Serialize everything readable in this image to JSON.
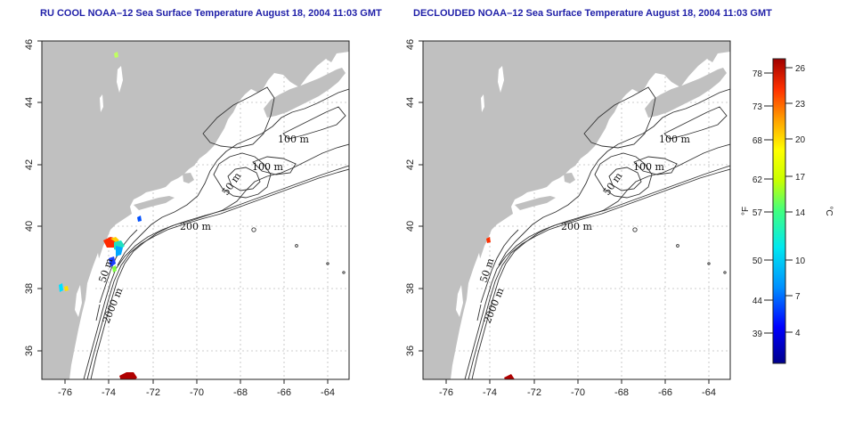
{
  "panels": [
    {
      "title": "RU COOL NOAA–12 Sea Surface Temperature August 18, 2004 11:03 GMT",
      "x_ticks": [
        "-76",
        "-74",
        "-72",
        "-70",
        "-68",
        "-66",
        "-64"
      ],
      "y_ticks": [
        "36",
        "38",
        "40",
        "42",
        "44",
        "46"
      ],
      "contour_labels": [
        "100 m",
        "100 m",
        "50 m",
        "200 m",
        "50 m",
        "2000 m"
      ]
    },
    {
      "title": "DECLOUDED NOAA–12 Sea Surface Temperature August 18, 2004 11:03 GMT",
      "x_ticks": [
        "-76",
        "-74",
        "-72",
        "-70",
        "-68",
        "-66",
        "-64"
      ],
      "y_ticks": [
        "36",
        "38",
        "40",
        "42",
        "44",
        "46"
      ],
      "contour_labels": [
        "100 m",
        "100 m",
        "50 m",
        "200 m",
        "50 m",
        "2000 m"
      ]
    }
  ],
  "colorbar": {
    "fahrenheit_ticks": [
      "78",
      "73",
      "68",
      "62",
      "57",
      "50",
      "44",
      "39"
    ],
    "celsius_ticks": [
      "26",
      "23",
      "20",
      "17",
      "14",
      "10",
      "7",
      "4"
    ],
    "fahrenheit_unit": "°F",
    "celsius_unit": "°C",
    "colors": [
      "#00008b",
      "#0000ff",
      "#0080ff",
      "#00e0ff",
      "#40ff80",
      "#c0ff00",
      "#ffff00",
      "#ffa000",
      "#ff3000",
      "#a00000"
    ]
  },
  "colors": {
    "land": "#c0c0c0",
    "sea": "#ffffff",
    "contour": "#333333",
    "grid": "#bdbdbd",
    "title": "#1f1fa8"
  }
}
